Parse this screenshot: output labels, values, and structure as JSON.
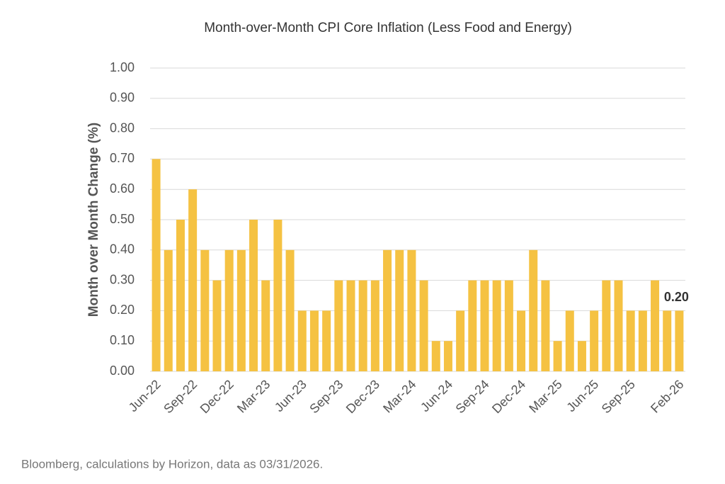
{
  "chart_data": {
    "type": "bar",
    "title": "Month-over-Month CPI Core Inflation (Less Food and Energy)",
    "y_label": "Month over Month Change (%)",
    "source": "Bloomberg, calculations by Horizon, data as 03/31/2026.",
    "categories": [
      "Jun-22",
      null,
      null,
      "Sep-22",
      null,
      null,
      "Dec-22",
      null,
      null,
      "Mar-23",
      null,
      null,
      "Jun-23",
      null,
      null,
      "Sep-23",
      null,
      null,
      "Dec-23",
      null,
      null,
      "Mar-24",
      null,
      null,
      "Jun-24",
      null,
      null,
      "Sep-24",
      null,
      null,
      "Dec-24",
      null,
      null,
      "Mar-25",
      null,
      null,
      "Jun-25",
      null,
      null,
      "Sep-25",
      null,
      null,
      null,
      "Feb-26"
    ],
    "values": [
      0.7,
      0.4,
      0.5,
      0.6,
      0.4,
      0.3,
      0.4,
      0.4,
      0.5,
      0.3,
      0.5,
      0.4,
      0.2,
      0.2,
      0.2,
      0.3,
      0.3,
      0.3,
      0.3,
      0.4,
      0.4,
      0.4,
      0.3,
      0.1,
      0.1,
      0.2,
      0.3,
      0.3,
      0.3,
      0.3,
      0.2,
      0.4,
      0.3,
      0.1,
      0.2,
      0.1,
      0.2,
      0.3,
      0.3,
      0.2,
      0.2,
      0.3,
      0.2,
      0.2
    ],
    "value_labels": [
      null,
      null,
      null,
      null,
      null,
      null,
      null,
      null,
      null,
      null,
      null,
      null,
      null,
      null,
      null,
      null,
      null,
      null,
      null,
      null,
      null,
      null,
      null,
      null,
      null,
      null,
      null,
      null,
      null,
      null,
      null,
      null,
      null,
      null,
      null,
      null,
      null,
      null,
      null,
      null,
      null,
      null,
      null,
      "0.20"
    ],
    "color": "#f5c242",
    "ylim": [
      0,
      1
    ],
    "yticks": [
      {
        "value": 0,
        "label": "0.00"
      },
      {
        "value": 0.1,
        "label": "0.10"
      },
      {
        "value": 0.2,
        "label": "0.20"
      },
      {
        "value": 0.3,
        "label": "0.30"
      },
      {
        "value": 0.4,
        "label": "0.40"
      },
      {
        "value": 0.5,
        "label": "0.50"
      },
      {
        "value": 0.6,
        "label": "0.60"
      },
      {
        "value": 0.7,
        "label": "0.70"
      },
      {
        "value": 0.8,
        "label": "0.80"
      },
      {
        "value": 0.9,
        "label": "0.90"
      },
      {
        "value": 1,
        "label": "1.00"
      }
    ],
    "grid": true
  }
}
